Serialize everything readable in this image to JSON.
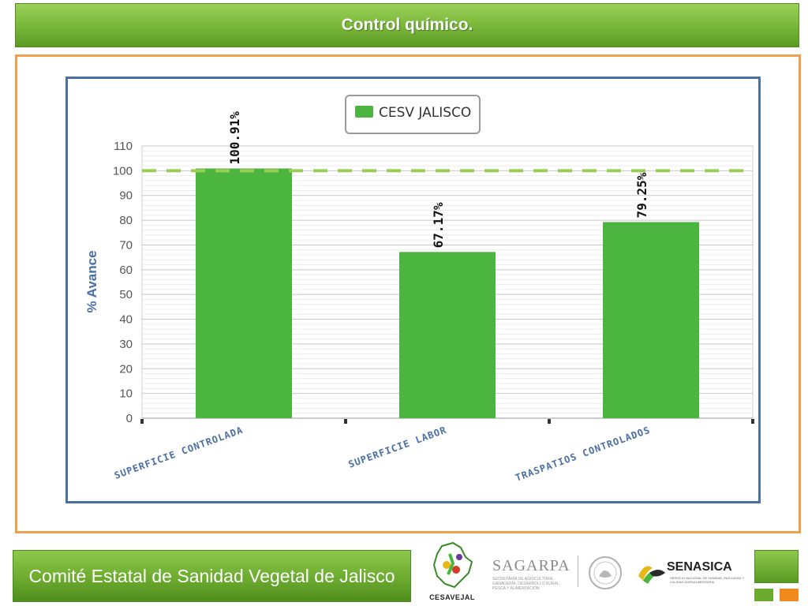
{
  "header": {
    "title": "Control químico."
  },
  "footer": {
    "organization": "Comité Estatal de Sanidad Vegetal de Jalisco"
  },
  "logos": {
    "cesavejal": {
      "caption": "CESAVEJAL"
    },
    "sagarpa": {
      "name": "SAGARPA",
      "subtitle": "SECRETARÍA DE AGRICULTURA, GANADERÍA, DESARROLLO RURAL, PESCA Y ALIMENTACIÓN"
    },
    "senasica": {
      "name": "SENASICA",
      "subtitle": "SERVICIO NACIONAL DE SANIDAD, INOCUIDAD Y CALIDAD AGROALIMENTARIA"
    }
  },
  "colors": {
    "accent_green": "#4cb540",
    "target_line": "#9acd55",
    "frame_orange": "#f0a04b",
    "chart_border": "#4a6fa5",
    "axis_label": "#4a6fa5"
  },
  "chart_data": {
    "type": "bar",
    "title": "",
    "xlabel": "",
    "ylabel": "% Avance",
    "categories": [
      "SUPERFICIE CONTROLADA",
      "SUPERFICIE LABOR",
      "TRASPATIOS CONTROLADOS"
    ],
    "series": [
      {
        "name": "CESV JALISCO",
        "values": [
          100.91,
          67.17,
          79.25
        ],
        "color": "#4cb540"
      }
    ],
    "data_labels": [
      "100.91%",
      "67.17%",
      "79.25%"
    ],
    "yticks": [
      "0",
      "10",
      "20",
      "30",
      "40",
      "50",
      "60",
      "70",
      "80",
      "90",
      "100",
      "110"
    ],
    "ylim": [
      0,
      110
    ],
    "target_line": 100,
    "grid": true,
    "legend_position": "top-center"
  }
}
